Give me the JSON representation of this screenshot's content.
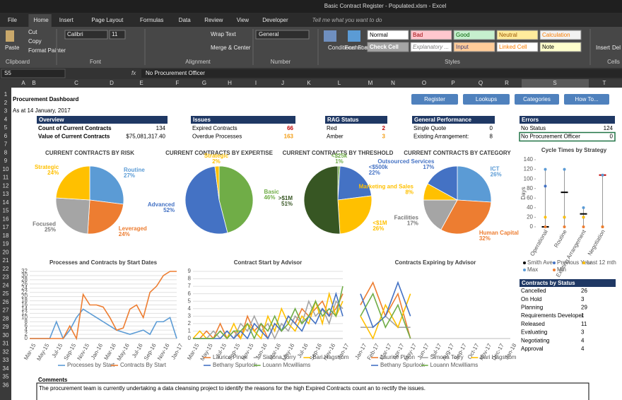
{
  "window": {
    "title": "Basic Contract Register - Populated.xlsm - Excel"
  },
  "menu": [
    "File",
    "Home",
    "Insert",
    "Page Layout",
    "Formulas",
    "Data",
    "Review",
    "View",
    "Developer"
  ],
  "tell_me": "Tell me what you want to do",
  "ribbon": {
    "paste": "Paste",
    "cut": "Cut",
    "copy": "Copy",
    "format_painter": "Format Painter",
    "font": "Calibri",
    "size": "11",
    "wrap": "Wrap Text",
    "merge": "Merge & Center",
    "number_format": "General",
    "conditional": "Conditional Formatting",
    "format_table": "Format as Table",
    "insert": "Insert",
    "delete": "Del",
    "groups": [
      "Clipboard",
      "Font",
      "Alignment",
      "Number",
      "Styles",
      "Cells"
    ],
    "styles": [
      "Normal",
      "Bad",
      "Good",
      "Neutral",
      "Calculation",
      "Check Cell",
      "Explanatory ...",
      "Input",
      "Linked Cell",
      "Note"
    ]
  },
  "formula_bar": {
    "cell": "S5",
    "content": "No Procurement Officer"
  },
  "columns": [
    "A",
    "B",
    "C",
    "D",
    "E",
    "F",
    "G",
    "H",
    "I",
    "J",
    "K",
    "L",
    "M",
    "N",
    "O",
    "P",
    "Q",
    "R",
    "S",
    "T"
  ],
  "rows": [
    1,
    2,
    3,
    4,
    5,
    6,
    7,
    8,
    9,
    10,
    11,
    12,
    13,
    14,
    15,
    16,
    17,
    18,
    19,
    20,
    21,
    22,
    23,
    24,
    25,
    26,
    27,
    28,
    29,
    30,
    31,
    32,
    33,
    34,
    35,
    36
  ],
  "sheet": {
    "title": "Procurement Dashboard",
    "date": "As at 14 January, 2017",
    "buttons": [
      "Register",
      "Lookups",
      "Categories",
      "How To..."
    ],
    "tables": [
      {
        "header": "Overview",
        "rows": [
          [
            "Count of Current Contracts",
            "134"
          ],
          [
            "Value of Current Contracts",
            "$75,081,317.40"
          ]
        ]
      },
      {
        "header": "Issues",
        "rows": [
          [
            "Expired Contracts",
            "66"
          ],
          [
            "Overdue Processes",
            "163"
          ]
        ]
      },
      {
        "header": "RAG Status",
        "rows": [
          [
            "Red",
            "2"
          ],
          [
            "Amber",
            "3"
          ]
        ]
      },
      {
        "header": "General Performance",
        "rows": [
          [
            "Single Quote",
            "0"
          ],
          [
            "Existing Arrangement:",
            "8"
          ]
        ]
      },
      {
        "header": "Errors",
        "rows": [
          [
            "No Status",
            "124"
          ],
          [
            "No Procurement Officer",
            "0"
          ]
        ]
      }
    ],
    "status": {
      "header": "Contracts by Status",
      "rows": [
        [
          "Cancelled",
          "26"
        ],
        [
          "On Hold",
          "3"
        ],
        [
          "Planning",
          "29"
        ],
        [
          "Requirements Developer",
          "1"
        ],
        [
          "Released",
          "11"
        ],
        [
          "Evaluating",
          "3"
        ],
        [
          "Negotiating",
          "4"
        ],
        [
          "Approval",
          "4"
        ]
      ]
    },
    "comments": {
      "label": "Comments",
      "text": "The procurement team is currently undertaking a data cleansing project to identify the reasons for the high Expired Contracts count an to rectify the issues."
    }
  },
  "charts": [
    {
      "type": "pie",
      "title": "CURRENT CONTRACTS BY RISK",
      "categories": [
        "Routine",
        "Leveraged",
        "Focused",
        "Strategic"
      ],
      "values": [
        27,
        24,
        25,
        24
      ],
      "value_labels": [
        "27%",
        "24%",
        "25%",
        "24%"
      ],
      "colors": [
        "#5b9bd5",
        "#ed7d31",
        "#a5a5a5",
        "#ffc000"
      ]
    },
    {
      "type": "pie",
      "title": "CURRENT CONTRACTS BY EXPERTISE",
      "categories": [
        "Basic",
        "Advanced",
        "Strategic"
      ],
      "values": [
        46,
        52,
        2
      ],
      "value_labels": [
        "46%",
        "52%",
        "2%"
      ],
      "colors": [
        "#70ad47",
        "#4472c4",
        "#ffc000"
      ]
    },
    {
      "type": "pie",
      "title": "CURRENT CONTRACTS BY THRESHOLD",
      "categories": [
        "<$25k",
        "<$500k",
        "<$1M",
        ">$1M"
      ],
      "values": [
        1,
        22,
        26,
        51
      ],
      "value_labels": [
        "1%",
        "22%",
        "26%",
        "51%"
      ],
      "colors": [
        "#70ad47",
        "#4472c4",
        "#ffc000",
        "#375623"
      ]
    },
    {
      "type": "pie",
      "title": "CURRENT CONTRACTS BY CATEGORY",
      "categories": [
        "ICT",
        "Human Capital",
        "Facilities",
        "Marketing and Sales",
        "Outsourced Services"
      ],
      "values": [
        26,
        32,
        17,
        8,
        17
      ],
      "value_labels": [
        "26%",
        "32%",
        "17%",
        "8%",
        "17%"
      ],
      "colors": [
        "#5b9bd5",
        "#ed7d31",
        "#a5a5a5",
        "#ffc000",
        "#4472c4"
      ]
    },
    {
      "type": "line",
      "title": "Processes and Contracts by Start Dates",
      "ylim": [
        0,
        32
      ],
      "yticks": [
        0,
        2,
        4,
        6,
        8,
        10,
        12,
        14,
        16,
        18,
        20,
        22,
        24,
        26,
        28,
        30,
        32
      ],
      "categories": [
        "Mar-15",
        null,
        "May-15",
        null,
        "Jul-15",
        null,
        "Sep-15",
        null,
        "Nov-15",
        null,
        "Jan-16",
        null,
        "Mar-16",
        null,
        "May-16",
        null,
        "Jul-16",
        null,
        "Sep-16",
        null,
        "Nov-16",
        null,
        "Jan-17"
      ],
      "series": [
        {
          "name": "Processes by Start",
          "color": "#5b9bd5",
          "values": [
            0,
            0,
            0,
            0,
            8,
            0,
            4,
            10,
            14,
            12,
            10,
            8,
            6,
            4,
            3,
            2,
            3,
            4,
            2,
            8,
            8,
            10,
            0
          ]
        },
        {
          "name": "Contracts By Start",
          "color": "#ed7d31",
          "values": [
            0,
            0,
            0,
            0,
            0,
            0,
            6,
            0,
            21,
            16,
            16,
            15,
            10,
            4,
            5,
            14,
            16,
            10,
            22,
            25,
            30,
            32,
            32
          ]
        }
      ]
    },
    {
      "type": "line",
      "title": "Contract Start by Advisor",
      "ylim": [
        0,
        9
      ],
      "yticks": [
        0,
        1,
        2,
        3,
        4,
        5,
        6,
        7,
        8,
        9
      ],
      "categories": [
        "Mar-15",
        null,
        "May-15",
        null,
        "Jul-15",
        null,
        "Sep-15",
        null,
        "Nov-15",
        null,
        "Jan-16",
        null,
        "Mar-16",
        null,
        "May-16",
        null,
        "Jul-16",
        null,
        "Sep-16",
        null,
        "Nov-16",
        null,
        "Jan-17"
      ],
      "series": [
        {
          "name": "Laurice Pinon",
          "color": "#ed7d31",
          "values": [
            0,
            0,
            1,
            0,
            2,
            0,
            1,
            0,
            3,
            1,
            2,
            0,
            2,
            1,
            3,
            2,
            4,
            3,
            4,
            5,
            3,
            4,
            6
          ]
        },
        {
          "name": "Simona Torry",
          "color": "#a5a5a5",
          "values": [
            0,
            0,
            0,
            1,
            0,
            1,
            0,
            2,
            1,
            3,
            1,
            2,
            0,
            2,
            1,
            3,
            2,
            5,
            3,
            4,
            2,
            5,
            4
          ]
        },
        {
          "name": "Bari Hagstrom",
          "color": "#ffc000",
          "values": [
            0,
            1,
            0,
            0,
            1,
            0,
            2,
            0,
            2,
            1,
            0,
            3,
            1,
            4,
            2,
            1,
            3,
            2,
            5,
            2,
            6,
            3,
            5
          ]
        },
        {
          "name": "Bethany Spurlock",
          "color": "#4472c4",
          "values": [
            0,
            0,
            0,
            0,
            0,
            1,
            0,
            1,
            0,
            2,
            1,
            0,
            2,
            1,
            3,
            2,
            1,
            3,
            2,
            4,
            3,
            6,
            3
          ]
        },
        {
          "name": "Louann Mcwilliams",
          "color": "#70ad47",
          "values": [
            0,
            0,
            0,
            0,
            1,
            0,
            1,
            1,
            2,
            0,
            2,
            1,
            3,
            1,
            2,
            4,
            2,
            3,
            5,
            3,
            4,
            3,
            7
          ]
        }
      ]
    },
    {
      "type": "line",
      "title": "Contracts Expiring by Advisor",
      "ylim": [
        0,
        6
      ],
      "categories": [
        "Jan-17",
        "Feb-17",
        "Mar-17",
        "Apr-17",
        "May-17",
        "Jun-17",
        "Jul-17",
        "Aug-17",
        "Sep-17",
        "Oct-17",
        "Nov-17",
        "Dec-17",
        "Jan-18"
      ],
      "series": [
        {
          "name": "Laurice Pinon",
          "color": "#ed7d31",
          "values": [
            3,
            5,
            2,
            4,
            0,
            null,
            null,
            null,
            null,
            null,
            null,
            null,
            null
          ]
        },
        {
          "name": "Simona Torry",
          "color": "#a5a5a5",
          "values": [
            1,
            1,
            2,
            1,
            1,
            null,
            null,
            null,
            null,
            null,
            null,
            null,
            null
          ]
        },
        {
          "name": "Bari Hagstrom",
          "color": "#ffc000",
          "values": [
            2,
            0,
            3,
            1,
            4,
            null,
            null,
            null,
            null,
            null,
            null,
            null,
            null
          ]
        },
        {
          "name": "Bethany Spurlock",
          "color": "#4472c4",
          "values": [
            4,
            1,
            2,
            5,
            2,
            null,
            null,
            null,
            null,
            null,
            null,
            null,
            null
          ]
        },
        {
          "name": "Louann Mcwilliams",
          "color": "#70ad47",
          "values": [
            2,
            4,
            1,
            3,
            0,
            null,
            null,
            null,
            null,
            null,
            null,
            null,
            null
          ]
        }
      ]
    },
    {
      "type": "range",
      "title": "Cycle Times by Strategy",
      "y_label": "Days",
      "ylim": [
        0,
        140
      ],
      "yticks": [
        0,
        20,
        40,
        60,
        80,
        100,
        120,
        140
      ],
      "categories": [
        "Operational",
        "Routine",
        "Existing Arrangement",
        "Negotiation"
      ],
      "series": [
        {
          "name": "Smith Ave",
          "color": "#000000",
          "values": [
            0,
            72,
            27,
            108
          ]
        },
        {
          "name": "Previous Year",
          "color": "#4472c4",
          "values": [
            85,
            20,
            20,
            0
          ]
        },
        {
          "name": "Last 12 mth",
          "color": "#ffc000",
          "values": [
            20,
            20,
            20,
            0
          ]
        },
        {
          "name": "Max",
          "color": "#5b9bd5",
          "values": [
            120,
            120,
            40,
            108
          ]
        },
        {
          "name": "Min",
          "color": "#ed7d31",
          "values": [
            0,
            0,
            0,
            0
          ]
        }
      ]
    }
  ]
}
